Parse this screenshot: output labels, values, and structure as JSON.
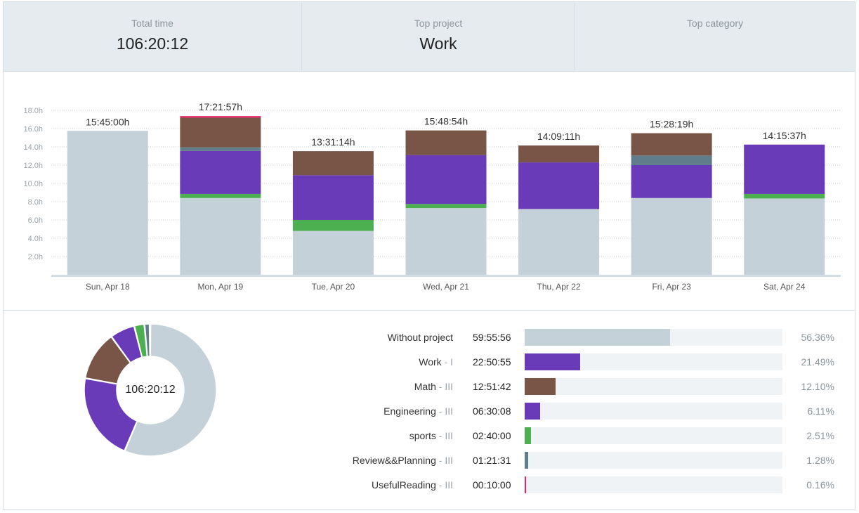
{
  "summary": {
    "total_time_label": "Total time",
    "total_time_value": "106:20:12",
    "top_project_label": "Top project",
    "top_project_value": "Work",
    "top_category_label": "Top category",
    "top_category_value": ""
  },
  "colors": {
    "without_project": "#c5d1d8",
    "work": "#6a3bb9",
    "math": "#795548",
    "engineering": "#6a3bb9",
    "sports": "#4caf50",
    "review": "#607d8b",
    "useful_reading": "#e91e63"
  },
  "chart_data": {
    "type": "bar",
    "stacked": true,
    "ylabel": "",
    "ylim": [
      0,
      18
    ],
    "yticks": [
      "2.0h",
      "4.0h",
      "6.0h",
      "8.0h",
      "10.0h",
      "12.0h",
      "14.0h",
      "16.0h",
      "18.0h"
    ],
    "grid": true,
    "categories": [
      "Sun, Apr 18",
      "Mon, Apr 19",
      "Tue, Apr 20",
      "Wed, Apr 21",
      "Thu, Apr 22",
      "Fri, Apr 23",
      "Sat, Apr 24"
    ],
    "totals": [
      "15:45:00h",
      "17:21:57h",
      "13:31:14h",
      "15:48:54h",
      "14:09:11h",
      "15:28:19h",
      "14:15:37h"
    ],
    "series": [
      {
        "name": "Without project",
        "color": "#c5d1d8",
        "values": [
          15.75,
          8.4,
          4.8,
          7.3,
          7.2,
          8.4,
          8.35
        ]
      },
      {
        "name": "sports",
        "color": "#4caf50",
        "values": [
          0,
          0.45,
          1.2,
          0.45,
          0,
          0,
          0.5
        ]
      },
      {
        "name": "Work",
        "color": "#6a3bb9",
        "values": [
          0,
          4.7,
          4.9,
          5.35,
          5.1,
          3.6,
          5.4
        ]
      },
      {
        "name": "Review&&Planning",
        "color": "#607d8b",
        "values": [
          0,
          0.4,
          0,
          0,
          0,
          1.05,
          0
        ]
      },
      {
        "name": "Math",
        "color": "#795548",
        "values": [
          0,
          3.25,
          2.63,
          2.7,
          1.85,
          2.45,
          0
        ]
      },
      {
        "name": "UsefulReading",
        "color": "#e91e63",
        "values": [
          0,
          0.17,
          0,
          0,
          0,
          0,
          0
        ]
      }
    ]
  },
  "donut": {
    "center_label": "106:20:12",
    "slices": [
      {
        "name": "Without project",
        "percent": 56.36,
        "color": "#c5d1d8"
      },
      {
        "name": "Work",
        "percent": 21.49,
        "color": "#6a3bb9"
      },
      {
        "name": "Math",
        "percent": 12.1,
        "color": "#795548"
      },
      {
        "name": "Engineering",
        "percent": 6.11,
        "color": "#6a3bb9"
      },
      {
        "name": "sports",
        "percent": 2.51,
        "color": "#4caf50"
      },
      {
        "name": "Review&&Planning",
        "percent": 1.28,
        "color": "#607d8b"
      },
      {
        "name": "UsefulReading",
        "percent": 0.16,
        "color": "#e91e63"
      }
    ]
  },
  "projects": [
    {
      "name": "Without project",
      "category": "",
      "time": "59:55:56",
      "percent_label": "56.36%",
      "fraction": 0.5636,
      "color": "#c5d1d8"
    },
    {
      "name": "Work",
      "category": " - I",
      "time": "22:50:55",
      "percent_label": "21.49%",
      "fraction": 0.2149,
      "color": "#6a3bb9"
    },
    {
      "name": "Math",
      "category": " - III",
      "time": "12:51:42",
      "percent_label": "12.10%",
      "fraction": 0.121,
      "color": "#795548"
    },
    {
      "name": "Engineering",
      "category": " - III",
      "time": "06:30:08",
      "percent_label": "6.11%",
      "fraction": 0.0611,
      "color": "#6a3bb9"
    },
    {
      "name": "sports",
      "category": " - III",
      "time": "02:40:00",
      "percent_label": "2.51%",
      "fraction": 0.0251,
      "color": "#4caf50"
    },
    {
      "name": "Review&&Planning",
      "category": " - III",
      "time": "01:21:31",
      "percent_label": "1.28%",
      "fraction": 0.0128,
      "color": "#607d8b"
    },
    {
      "name": "UsefulReading",
      "category": " - III",
      "time": "00:10:00",
      "percent_label": "0.16%",
      "fraction": 0.0016,
      "color": "#e91e63"
    }
  ]
}
